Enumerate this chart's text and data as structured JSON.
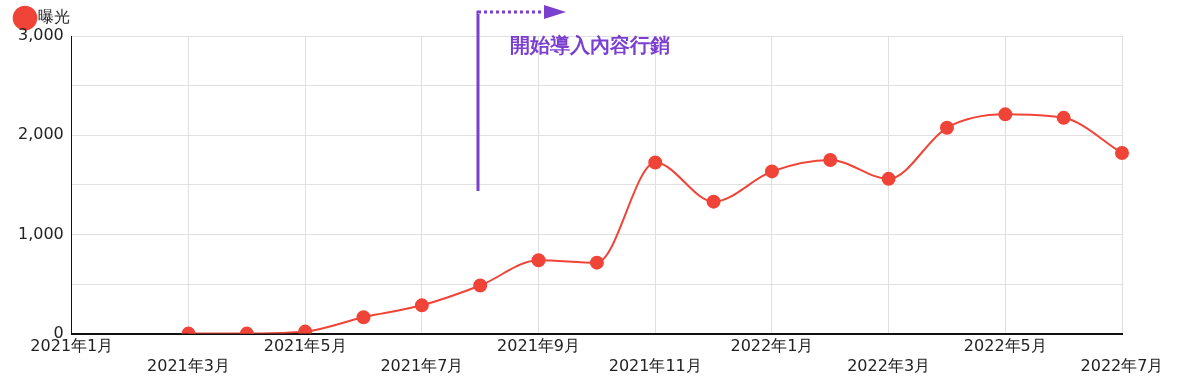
{
  "chart_data": {
    "type": "line",
    "categories": [
      "2021年1月",
      null,
      "2021年3月",
      null,
      "2021年5月",
      null,
      "2021年7月",
      null,
      "2021年9月",
      null,
      "2021年11月",
      null,
      "2022年1月",
      null,
      "2022年3月",
      null,
      "2022年5月",
      null,
      "2022年7月"
    ],
    "series": [
      {
        "name": "曝光",
        "color": "#f04438",
        "values": [
          null,
          null,
          0,
          0,
          20,
          165,
          285,
          485,
          740,
          715,
          1725,
          1330,
          1635,
          1750,
          1560,
          2075,
          2210,
          2175,
          1820
        ]
      }
    ],
    "ylim": [
      0,
      3000
    ],
    "yticks": [
      0,
      {
        "value": 500,
        "label": null
      },
      "1,000",
      {
        "value": 1500,
        "label": null
      },
      {
        "value": 2000,
        "label": "2,000"
      },
      {
        "value": 2500,
        "label": null
      },
      {
        "value": 3000,
        "label": "3,000"
      }
    ],
    "annotations": [
      "開始導入內容行銷"
    ],
    "grid": true,
    "legend": "top left",
    "marker": "circle",
    "line_style": "solid"
  }
}
